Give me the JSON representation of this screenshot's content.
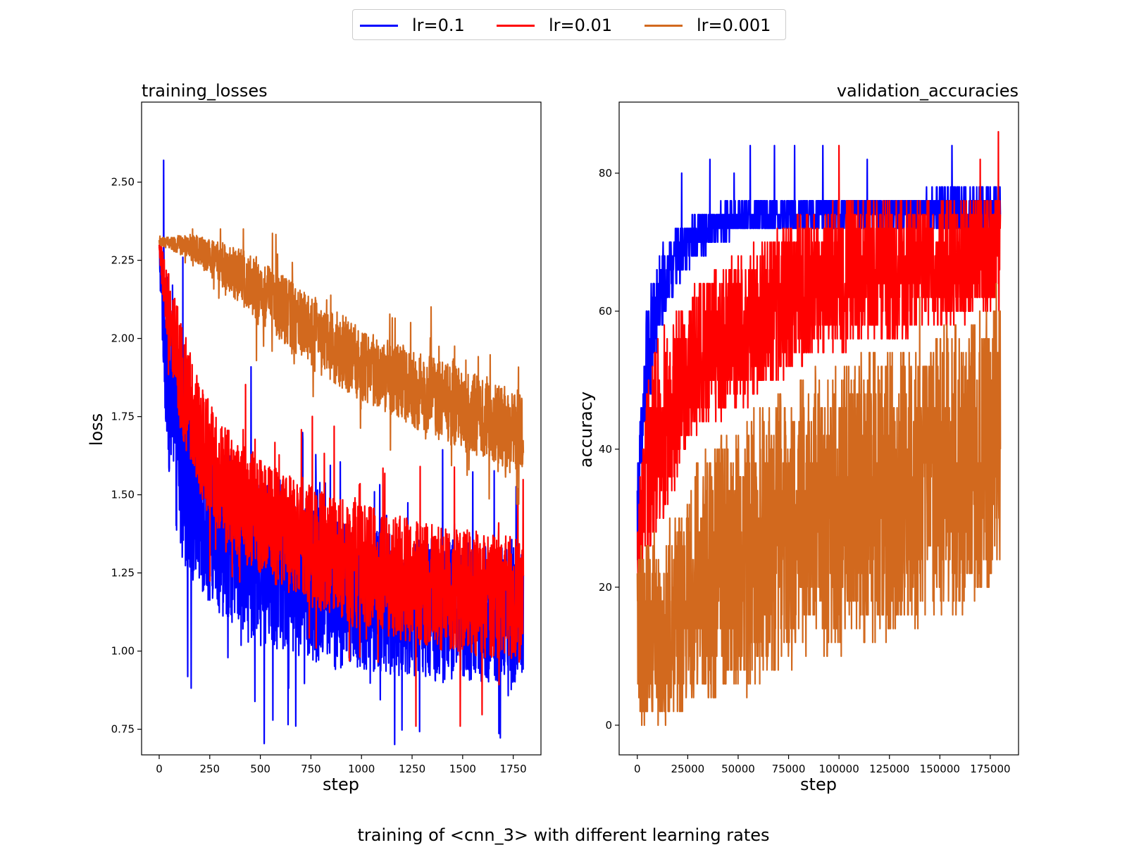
{
  "figure": {
    "suptitle": "training of <cnn_3> with different learning rates",
    "legend": [
      {
        "label": "lr=0.1",
        "color": "#0000ff"
      },
      {
        "label": "lr=0.01",
        "color": "#ff0000"
      },
      {
        "label": "lr=0.001",
        "color": "#d2691e"
      }
    ]
  },
  "chart_data": [
    {
      "type": "line",
      "title": "training_losses",
      "title_align": "left",
      "xlabel": "step",
      "ylabel": "loss",
      "xlim": [
        -87,
        1887
      ],
      "ylim": [
        0.668,
        2.756
      ],
      "xticks": [
        0,
        250,
        500,
        750,
        1000,
        1250,
        1500,
        1750
      ],
      "yticks": [
        0.75,
        1.0,
        1.25,
        1.5,
        1.75,
        2.0,
        2.25,
        2.5
      ],
      "ytick_labels": [
        "0.75",
        "1.00",
        "1.25",
        "1.50",
        "1.75",
        "2.00",
        "2.25",
        "2.50"
      ],
      "grid": false,
      "series": [
        {
          "name": "lr=0.1",
          "color": "#0000ff",
          "x": [
            0,
            25,
            50,
            100,
            150,
            200,
            300,
            400,
            500,
            600,
            700,
            800,
            900,
            1000,
            1100,
            1200,
            1300,
            1400,
            1500,
            1600,
            1700,
            1800
          ],
          "mean": [
            2.28,
            2.05,
            1.85,
            1.62,
            1.52,
            1.46,
            1.38,
            1.32,
            1.28,
            1.25,
            1.22,
            1.2,
            1.18,
            1.17,
            1.16,
            1.15,
            1.14,
            1.13,
            1.13,
            1.12,
            1.12,
            1.11
          ],
          "spread": [
            0.03,
            0.25,
            0.3,
            0.3,
            0.28,
            0.27,
            0.26,
            0.25,
            0.25,
            0.24,
            0.24,
            0.24,
            0.24,
            0.23,
            0.23,
            0.23,
            0.23,
            0.23,
            0.22,
            0.22,
            0.22,
            0.22
          ],
          "min": 0.68,
          "max": 2.57,
          "peak_step": 22
        },
        {
          "name": "lr=0.01",
          "color": "#ff0000",
          "x": [
            0,
            25,
            50,
            100,
            150,
            200,
            300,
            400,
            500,
            600,
            700,
            800,
            900,
            1000,
            1100,
            1200,
            1300,
            1400,
            1500,
            1600,
            1700,
            1800
          ],
          "mean": [
            2.29,
            2.18,
            2.08,
            1.9,
            1.78,
            1.68,
            1.56,
            1.48,
            1.43,
            1.39,
            1.35,
            1.32,
            1.29,
            1.27,
            1.25,
            1.23,
            1.21,
            1.2,
            1.19,
            1.18,
            1.17,
            1.16
          ],
          "spread": [
            0.02,
            0.1,
            0.14,
            0.18,
            0.18,
            0.18,
            0.18,
            0.19,
            0.19,
            0.19,
            0.19,
            0.2,
            0.2,
            0.2,
            0.2,
            0.2,
            0.2,
            0.2,
            0.2,
            0.2,
            0.2,
            0.2
          ],
          "min": 0.76,
          "max": 2.3
        },
        {
          "name": "lr=0.001",
          "color": "#d2691e",
          "x": [
            0,
            100,
            200,
            300,
            400,
            500,
            600,
            700,
            800,
            900,
            1000,
            1100,
            1200,
            1300,
            1400,
            1500,
            1600,
            1700,
            1800
          ],
          "mean": [
            2.31,
            2.3,
            2.28,
            2.24,
            2.2,
            2.15,
            2.1,
            2.05,
            2.0,
            1.96,
            1.92,
            1.89,
            1.86,
            1.83,
            1.8,
            1.77,
            1.75,
            1.72,
            1.7
          ],
          "spread": [
            0.01,
            0.03,
            0.05,
            0.07,
            0.09,
            0.1,
            0.11,
            0.11,
            0.12,
            0.12,
            0.12,
            0.12,
            0.12,
            0.13,
            0.13,
            0.13,
            0.13,
            0.13,
            0.13
          ],
          "min": 1.47,
          "max": 2.35
        }
      ]
    },
    {
      "type": "line",
      "title": "validation_accuracies",
      "title_align": "right",
      "xlabel": "step",
      "ylabel": "accuracy",
      "xlim": [
        -9000,
        189000
      ],
      "ylim": [
        -4.3,
        90.3
      ],
      "xticks": [
        0,
        25000,
        50000,
        75000,
        100000,
        125000,
        150000,
        175000
      ],
      "yticks": [
        0,
        20,
        40,
        60,
        80
      ],
      "ytick_labels": [
        "0",
        "20",
        "40",
        "60",
        "80"
      ],
      "grid": false,
      "series": [
        {
          "name": "lr=0.1",
          "color": "#0000ff",
          "x": [
            0,
            5000,
            10000,
            15000,
            20000,
            25000,
            30000,
            40000,
            50000,
            60000,
            70000,
            80000,
            90000,
            100000,
            110000,
            120000,
            130000,
            140000,
            150000,
            160000,
            170000,
            180000
          ],
          "upper": [
            38,
            62,
            68,
            70,
            72,
            73,
            74,
            75,
            76,
            76,
            76,
            76,
            77,
            77,
            77,
            77,
            77,
            77,
            78,
            78,
            78,
            78
          ],
          "lower": [
            24,
            44,
            54,
            60,
            64,
            66,
            68,
            70,
            71,
            72,
            72,
            72,
            72,
            72,
            72,
            72,
            72,
            72,
            72,
            72,
            72,
            72
          ],
          "peaks": [
            [
              22000,
              80
            ],
            [
              36000,
              82
            ],
            [
              48000,
              80
            ],
            [
              56000,
              84
            ],
            [
              68000,
              84
            ],
            [
              78000,
              84
            ],
            [
              92000,
              84
            ],
            [
              114000,
              82
            ],
            [
              156000,
              84
            ]
          ]
        },
        {
          "name": "lr=0.01",
          "color": "#ff0000",
          "x": [
            0,
            5000,
            10000,
            15000,
            20000,
            25000,
            30000,
            40000,
            50000,
            60000,
            70000,
            80000,
            90000,
            100000,
            110000,
            120000,
            130000,
            140000,
            150000,
            160000,
            170000,
            180000
          ],
          "upper": [
            30,
            50,
            56,
            58,
            60,
            62,
            64,
            66,
            68,
            70,
            72,
            74,
            75,
            76,
            76,
            76,
            76,
            76,
            76,
            76,
            76,
            76
          ],
          "lower": [
            20,
            24,
            28,
            32,
            36,
            40,
            42,
            44,
            46,
            48,
            50,
            52,
            54,
            54,
            56,
            56,
            56,
            58,
            58,
            58,
            60,
            60
          ],
          "peaks": [
            [
              100000,
              84
            ],
            [
              170000,
              82
            ],
            [
              179000,
              86
            ]
          ]
        },
        {
          "name": "lr=0.001",
          "color": "#d2691e",
          "x": [
            0,
            10000,
            20000,
            25000,
            30000,
            40000,
            50000,
            60000,
            70000,
            80000,
            90000,
            100000,
            110000,
            120000,
            130000,
            140000,
            150000,
            160000,
            170000,
            180000
          ],
          "upper": [
            28,
            28,
            30,
            34,
            38,
            42,
            44,
            46,
            48,
            50,
            52,
            52,
            54,
            54,
            56,
            56,
            58,
            58,
            60,
            62
          ],
          "lower": [
            0,
            0,
            0,
            2,
            4,
            4,
            4,
            6,
            8,
            8,
            10,
            10,
            12,
            12,
            14,
            14,
            16,
            16,
            18,
            20
          ],
          "peaks": [
            [
              140000,
              62
            ],
            [
              178000,
              64
            ]
          ]
        }
      ]
    }
  ]
}
